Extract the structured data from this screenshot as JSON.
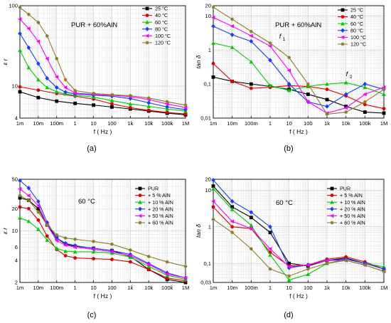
{
  "chart_data": [
    {
      "type": "line",
      "panel_label": "(a)",
      "annotation": "PUR + 60%AlN",
      "ylabel": "ε r",
      "xlabel": "f ( Hz )",
      "x_scale": "log",
      "y_scale": "log",
      "xlim": [
        0.001,
        1000000
      ],
      "ylim": [
        4,
        100
      ],
      "x_tick_values": [
        0.001,
        0.01,
        0.1,
        1,
        10,
        100,
        1000,
        10000,
        100000,
        1000000
      ],
      "x_tick_labels": [
        "1m",
        "10m",
        "100m",
        "1",
        "10",
        "100",
        "1k",
        "10k",
        "100k",
        "1M"
      ],
      "y_tick_values": [
        4,
        10,
        100
      ],
      "y_tick_labels": [
        "4",
        "10",
        "100"
      ],
      "grid": true,
      "legend_position": "top-right",
      "series": [
        {
          "name": "25 °C",
          "color": "#000000",
          "marker": "square",
          "x": [
            0.001,
            0.01,
            0.1,
            1,
            10,
            100,
            1000,
            10000,
            100000,
            1000000
          ],
          "y": [
            8.5,
            7.2,
            6.5,
            6.1,
            5.8,
            5.5,
            5.2,
            4.9,
            4.6,
            4.4
          ]
        },
        {
          "name": "40 °C",
          "color": "#e00000",
          "marker": "circle",
          "x": [
            0.001,
            0.01,
            0.1,
            1,
            10,
            100,
            1000,
            10000,
            100000,
            1000000
          ],
          "y": [
            9.8,
            8.9,
            8.1,
            7.5,
            6.9,
            6.0,
            5.4,
            5.0,
            4.7,
            4.5
          ]
        },
        {
          "name": "60 °C",
          "color": "#00cc00",
          "marker": "triangle",
          "x": [
            0.001,
            0.003,
            0.01,
            0.03,
            0.1,
            0.3,
            1,
            10,
            100,
            1000,
            10000,
            100000,
            1000000
          ],
          "y": [
            28,
            17,
            12,
            9.6,
            8.5,
            8.0,
            7.7,
            7.3,
            6.6,
            6.0,
            5.6,
            5.2,
            4.9
          ]
        },
        {
          "name": "80 °C",
          "color": "#1a3cff",
          "marker": "diamond",
          "x": [
            0.001,
            0.003,
            0.01,
            0.03,
            0.1,
            0.3,
            1,
            10,
            100,
            1000,
            10000,
            100000,
            1000000
          ],
          "y": [
            45,
            30,
            19,
            12.5,
            9.6,
            8.4,
            8.0,
            7.7,
            7.5,
            7.0,
            6.2,
            5.5,
            5.1
          ]
        },
        {
          "name": "100 °C",
          "color": "#ff00ff",
          "marker": "triangle-left",
          "x": [
            0.001,
            0.003,
            0.01,
            0.03,
            0.1,
            0.3,
            1,
            10,
            100,
            1000,
            10000,
            100000,
            1000000
          ],
          "y": [
            68,
            52,
            36,
            22,
            13,
            9.6,
            8.2,
            7.9,
            7.7,
            7.4,
            6.8,
            6.0,
            5.4
          ]
        },
        {
          "name": "120 °C",
          "color": "#8b7d22",
          "marker": "star",
          "x": [
            0.001,
            0.003,
            0.01,
            0.03,
            0.1,
            0.3,
            1,
            10,
            100,
            1000,
            10000,
            100000,
            1000000
          ],
          "y": [
            95,
            78,
            62,
            42,
            22,
            12,
            8.8,
            8.1,
            7.8,
            7.6,
            7.1,
            6.4,
            5.8
          ]
        }
      ]
    },
    {
      "type": "line",
      "panel_label": "(b)",
      "annotation": "PUR + 60%AlN",
      "ylabel": "tan δ",
      "xlabel": "f ( Hz )",
      "x_scale": "log",
      "y_scale": "log",
      "xlim": [
        0.001,
        1000000
      ],
      "ylim": [
        0.01,
        20
      ],
      "x_tick_values": [
        0.001,
        0.01,
        0.1,
        1,
        10,
        100,
        1000,
        10000,
        100000,
        1000000
      ],
      "x_tick_labels": [
        "1m",
        "10m",
        "100m",
        "1",
        "10",
        "100",
        "1k",
        "10k",
        "100k",
        "1M"
      ],
      "y_tick_values": [
        0.01,
        0.1,
        1,
        10,
        20
      ],
      "y_tick_labels": [
        "0,01",
        "0,1",
        "1",
        "10",
        "20"
      ],
      "grid": true,
      "legend_position": "top-right",
      "annotations": [
        {
          "text": "f",
          "sub": "1",
          "x": 3,
          "y": 2.2
        },
        {
          "text": "f",
          "sub": "2",
          "x": 10000,
          "y": 0.17
        }
      ],
      "series": [
        {
          "name": "25 °C",
          "color": "#000000",
          "marker": "square",
          "x": [
            0.001,
            0.01,
            0.1,
            1,
            10,
            100,
            1000,
            10000,
            100000,
            1000000
          ],
          "y": [
            0.16,
            0.12,
            0.1,
            0.085,
            0.07,
            0.05,
            0.035,
            0.022,
            0.015,
            0.014
          ]
        },
        {
          "name": "40 °C",
          "color": "#e00000",
          "marker": "circle",
          "x": [
            0.001,
            0.01,
            0.1,
            1,
            10,
            100,
            1000,
            10000,
            100000,
            1000000
          ],
          "y": [
            0.4,
            0.12,
            0.075,
            0.08,
            0.09,
            0.085,
            0.07,
            0.045,
            0.025,
            0.019
          ]
        },
        {
          "name": "60 °C",
          "color": "#00cc00",
          "marker": "triangle",
          "x": [
            0.001,
            0.01,
            0.1,
            1,
            10,
            100,
            1000,
            10000,
            100000,
            1000000
          ],
          "y": [
            1.6,
            1.2,
            0.45,
            0.09,
            0.065,
            0.085,
            0.1,
            0.11,
            0.08,
            0.05
          ]
        },
        {
          "name": "80 °C",
          "color": "#1a3cff",
          "marker": "diamond",
          "x": [
            0.001,
            0.01,
            0.1,
            1,
            10,
            100,
            1000,
            10000,
            100000,
            1000000
          ],
          "y": [
            5.0,
            2.8,
            1.8,
            0.5,
            0.1,
            0.03,
            0.022,
            0.05,
            0.1,
            0.07
          ]
        },
        {
          "name": "100 °C",
          "color": "#ff00ff",
          "marker": "triangle-left",
          "x": [
            0.001,
            0.01,
            0.1,
            1,
            10,
            100,
            1000,
            10000,
            100000,
            1000000
          ],
          "y": [
            9.0,
            5.0,
            2.6,
            1.3,
            0.25,
            0.03,
            0.014,
            0.02,
            0.05,
            0.08
          ]
        },
        {
          "name": "120 °C",
          "color": "#8b7d22",
          "marker": "star",
          "x": [
            0.001,
            0.01,
            0.1,
            1,
            10,
            100,
            1000,
            10000,
            100000,
            1000000
          ],
          "y": [
            18,
            8.0,
            3.5,
            1.6,
            0.6,
            0.1,
            0.013,
            0.015,
            0.03,
            0.07
          ]
        }
      ]
    },
    {
      "type": "line",
      "panel_label": "(c)",
      "annotation": "60 °C",
      "ylabel": "ε r",
      "xlabel": "f ( Hz )",
      "x_scale": "log",
      "y_scale": "log",
      "xlim": [
        0.001,
        1000000
      ],
      "ylim": [
        2,
        50
      ],
      "x_tick_values": [
        0.001,
        0.01,
        0.1,
        1,
        10,
        100,
        1000,
        10000,
        100000,
        1000000
      ],
      "x_tick_labels": [
        "1m",
        "10m",
        "100m",
        "1",
        "10",
        "100",
        "1k",
        "10k",
        "100k",
        "1M"
      ],
      "y_tick_values": [
        2,
        4,
        6,
        10,
        20,
        50
      ],
      "y_tick_labels": [
        "2",
        "4",
        "6",
        "10",
        "20",
        "50"
      ],
      "grid": true,
      "legend_position": "top-right",
      "series": [
        {
          "name": "PUR",
          "color": "#000000",
          "marker": "square",
          "x": [
            0.001,
            0.003,
            0.01,
            0.03,
            0.1,
            0.3,
            1,
            10,
            100,
            1000,
            10000,
            100000,
            1000000
          ],
          "y": [
            28,
            26,
            20,
            12,
            8,
            6.6,
            6.2,
            5.8,
            5.4,
            4.5,
            3.0,
            2.2,
            2.0
          ]
        },
        {
          "name": "+   5 % AlN",
          "color": "#e00000",
          "marker": "circle",
          "x": [
            0.001,
            0.003,
            0.01,
            0.03,
            0.1,
            0.3,
            1,
            10,
            100,
            1000,
            10000,
            100000,
            1000000
          ],
          "y": [
            21,
            20,
            14,
            8.5,
            5.6,
            4.6,
            4.3,
            4.2,
            4.1,
            3.8,
            3.0,
            2.3,
            2.1
          ]
        },
        {
          "name": "+ 10 % AlN",
          "color": "#00cc00",
          "marker": "triangle",
          "x": [
            0.001,
            0.003,
            0.01,
            0.03,
            0.1,
            0.3,
            1,
            10,
            100,
            1000,
            10000,
            100000,
            1000000
          ],
          "y": [
            15,
            13.5,
            10.5,
            7.5,
            5.8,
            5.3,
            5.2,
            5.2,
            5.0,
            4.4,
            3.3,
            2.5,
            2.2
          ]
        },
        {
          "name": "+ 20 % AlN",
          "color": "#1a3cff",
          "marker": "diamond",
          "x": [
            0.001,
            0.003,
            0.01,
            0.03,
            0.1,
            0.3,
            1,
            10,
            100,
            1000,
            10000,
            100000,
            1000000
          ],
          "y": [
            48,
            38,
            25,
            13,
            8.0,
            6.8,
            6.3,
            5.8,
            5.4,
            4.8,
            3.6,
            2.7,
            2.3
          ]
        },
        {
          "name": "+ 50 % AlN",
          "color": "#ff00ff",
          "marker": "triangle-left",
          "x": [
            0.001,
            0.003,
            0.01,
            0.03,
            0.1,
            0.3,
            1,
            10,
            100,
            1000,
            10000,
            100000,
            1000000
          ],
          "y": [
            37,
            30,
            22,
            12,
            7.4,
            6.4,
            6.0,
            5.6,
            5.2,
            4.6,
            3.5,
            2.6,
            2.3
          ]
        },
        {
          "name": "+ 60 % AlN",
          "color": "#8b7d22",
          "marker": "star",
          "x": [
            0.001,
            0.003,
            0.01,
            0.03,
            0.1,
            0.3,
            1,
            10,
            100,
            1000,
            10000,
            100000,
            1000000
          ],
          "y": [
            30,
            26,
            18,
            12,
            8.8,
            8.0,
            7.7,
            7.2,
            6.6,
            5.5,
            4.5,
            3.8,
            3.3
          ]
        }
      ]
    },
    {
      "type": "line",
      "panel_label": "(d)",
      "annotation": "60 °C",
      "ylabel": "tan δ",
      "xlabel": "f ( Hz )",
      "x_scale": "log",
      "y_scale": "log",
      "xlim": [
        0.001,
        1000000
      ],
      "ylim": [
        0.03,
        20
      ],
      "x_tick_values": [
        0.001,
        0.01,
        0.1,
        1,
        10,
        100,
        1000,
        10000,
        100000,
        1000000
      ],
      "x_tick_labels": [
        "1m",
        "10m",
        "100m",
        "1",
        "10",
        "100",
        "1k",
        "10k",
        "100k",
        "1M"
      ],
      "y_tick_values": [
        0.03,
        0.1,
        1,
        10,
        20
      ],
      "y_tick_labels": [
        "0,03",
        "0,1",
        "1",
        "10",
        "20"
      ],
      "grid": true,
      "legend_position": "top-right",
      "series": [
        {
          "name": "PUR",
          "color": "#000000",
          "marker": "square",
          "x": [
            0.001,
            0.01,
            0.1,
            1,
            10,
            100,
            1000,
            10000,
            100000,
            1000000
          ],
          "y": [
            13,
            3.5,
            1.8,
            0.7,
            0.1,
            0.085,
            0.12,
            0.14,
            0.1,
            0.07
          ]
        },
        {
          "name": "+   5 % AlN",
          "color": "#e00000",
          "marker": "circle",
          "x": [
            0.001,
            0.01,
            0.1,
            1,
            10,
            100,
            1000,
            10000,
            100000,
            1000000
          ],
          "y": [
            3.5,
            1.0,
            0.9,
            0.2,
            0.085,
            0.09,
            0.13,
            0.15,
            0.11,
            0.07
          ]
        },
        {
          "name": "+ 10 % AlN",
          "color": "#00cc00",
          "marker": "triangle",
          "x": [
            0.001,
            0.01,
            0.1,
            1,
            10,
            100,
            1000,
            10000,
            100000,
            1000000
          ],
          "y": [
            11,
            3.0,
            1.1,
            0.17,
            0.035,
            0.05,
            0.1,
            0.13,
            0.1,
            0.08
          ]
        },
        {
          "name": "+ 20 % AlN",
          "color": "#1a3cff",
          "marker": "diamond",
          "x": [
            0.001,
            0.01,
            0.1,
            1,
            10,
            100,
            1000,
            10000,
            100000,
            1000000
          ],
          "y": [
            19,
            5.0,
            2.5,
            1.0,
            0.075,
            0.09,
            0.12,
            0.13,
            0.1,
            0.07
          ]
        },
        {
          "name": "+ 50 % AlN",
          "color": "#ff00ff",
          "marker": "triangle-left",
          "x": [
            0.001,
            0.01,
            0.1,
            1,
            10,
            100,
            1000,
            10000,
            100000,
            1000000
          ],
          "y": [
            5.0,
            1.4,
            0.9,
            0.25,
            0.08,
            0.09,
            0.12,
            0.12,
            0.09,
            0.06
          ]
        },
        {
          "name": "+ 60 % AlN",
          "color": "#8b7d22",
          "marker": "star",
          "x": [
            0.001,
            0.01,
            0.1,
            1,
            10,
            100,
            1000,
            10000,
            100000,
            1000000
          ],
          "y": [
            1.6,
            0.7,
            0.25,
            0.07,
            0.045,
            0.07,
            0.1,
            0.12,
            0.09,
            0.06
          ]
        }
      ]
    }
  ]
}
